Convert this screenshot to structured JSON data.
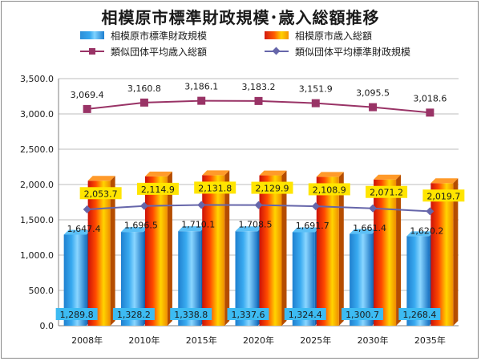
{
  "chart_data": {
    "type": "bar",
    "title": "相模原市標準財政規模･歳入総額推移",
    "categories": [
      "2008年",
      "2010年",
      "2015年",
      "2020年",
      "2025年",
      "2030年",
      "2035年"
    ],
    "ylim": [
      0,
      3500
    ],
    "yticks": [
      "0.0",
      "500.0",
      "1,000.0",
      "1,500.0",
      "2,000.0",
      "2,500.0",
      "3,000.0",
      "3,500.0"
    ],
    "series": [
      {
        "name": "相模原市標準財政規模",
        "kind": "bar",
        "color": "#36a7ee",
        "values": [
          1289.8,
          1328.2,
          1338.8,
          1337.6,
          1324.4,
          1300.7,
          1268.4
        ],
        "labels": [
          "1,289.8",
          "1,328.2",
          "1,338.8",
          "1,337.6",
          "1,324.4",
          "1,300.7",
          "1,268.4"
        ]
      },
      {
        "name": "相模原市歳入総額",
        "kind": "bar",
        "color": "#f39200",
        "values": [
          2053.7,
          2114.9,
          2131.8,
          2129.9,
          2108.9,
          2071.2,
          2019.7
        ],
        "labels": [
          "2,053.7",
          "2,114.9",
          "2,131.8",
          "2,129.9",
          "2,108.9",
          "2,071.2",
          "2,019.7"
        ]
      },
      {
        "name": "類似団体平均歳入総額",
        "kind": "line",
        "marker": "square",
        "color": "#993366",
        "values": [
          3069.4,
          3160.8,
          3186.1,
          3183.2,
          3151.9,
          3095.5,
          3018.6
        ],
        "labels": [
          "3,069.4",
          "3,160.8",
          "3,186.1",
          "3,183.2",
          "3,151.9",
          "3,095.5",
          "3,018.6"
        ]
      },
      {
        "name": "類似団体平均標準財政規模",
        "kind": "line",
        "marker": "diamond",
        "color": "#6666aa",
        "values": [
          1647.4,
          1696.5,
          1710.1,
          1708.5,
          1691.7,
          1661.4,
          1620.2
        ],
        "labels": [
          "1,647.4",
          "1,696.5",
          "1,710.1",
          "1,708.5",
          "1,691.7",
          "1,661.4",
          "1,620.2"
        ]
      }
    ],
    "grid": true,
    "legend": "top"
  }
}
